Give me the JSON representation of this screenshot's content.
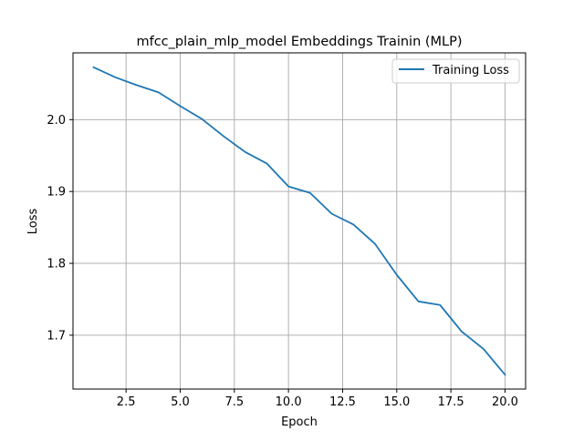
{
  "chart_data": {
    "type": "line",
    "title": "mfcc_plain_mlp_model Embeddings Trainin (MLP)",
    "xlabel": "Epoch",
    "ylabel": "Loss",
    "xlim": [
      0.05,
      20.95
    ],
    "ylim": [
      1.625,
      2.093
    ],
    "grid": true,
    "legend_position": "top-right",
    "x_ticks": [
      2.5,
      5.0,
      7.5,
      10.0,
      12.5,
      15.0,
      17.5,
      20.0
    ],
    "x_tick_labels": [
      "2.5",
      "5.0",
      "7.5",
      "10.0",
      "12.5",
      "15.0",
      "17.5",
      "20.0"
    ],
    "y_ticks": [
      1.7,
      1.8,
      1.9,
      2.0
    ],
    "y_tick_labels": [
      "1.7",
      "1.8",
      "1.9",
      "2.0"
    ],
    "series": [
      {
        "name": "Training Loss",
        "color": "#1f77b4",
        "x": [
          1,
          2,
          3,
          4,
          5,
          6,
          7,
          8,
          9,
          10,
          11,
          12,
          13,
          14,
          15,
          16,
          17,
          18,
          19,
          20
        ],
        "values": [
          2.073,
          2.059,
          2.048,
          2.038,
          2.019,
          2.001,
          1.977,
          1.955,
          1.939,
          1.907,
          1.898,
          1.869,
          1.854,
          1.827,
          1.784,
          1.747,
          1.742,
          1.705,
          1.681,
          1.645
        ]
      }
    ]
  }
}
